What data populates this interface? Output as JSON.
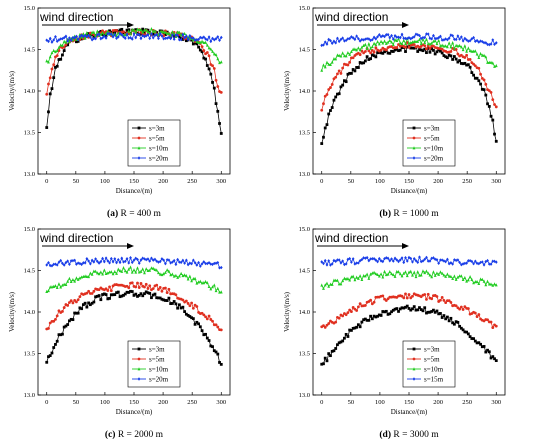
{
  "chart_data": [
    {
      "type": "line",
      "caption_letter": "(a)",
      "caption_text": " R = 400 m",
      "annotation": "wind direction",
      "xlabel": "Distance/(m)",
      "ylabel": "Velocity/(m/s)",
      "xlim": [
        -15,
        315
      ],
      "ylim": [
        13.0,
        15.0
      ],
      "xticks": [
        0,
        50,
        100,
        150,
        200,
        250,
        300
      ],
      "xtick_labels": [
        "0",
        "50",
        "100",
        "150",
        "200",
        "250",
        "300"
      ],
      "yticks": [
        13.0,
        13.5,
        14.0,
        14.5,
        15.0
      ],
      "ytick_labels": [
        "13.0",
        "13.5",
        "14.0",
        "14.5",
        "15.0"
      ],
      "legend_position": "lower-center",
      "series": [
        {
          "name": "s=3m",
          "color": "#000000",
          "marker": "square",
          "x": [
            0,
            5,
            10,
            15,
            20,
            25,
            30,
            40,
            50,
            60,
            75,
            90,
            110,
            130,
            150,
            170,
            190,
            210,
            230,
            250,
            265,
            275,
            282,
            288,
            292,
            296,
            300
          ],
          "y": [
            13.55,
            13.9,
            14.1,
            14.25,
            14.35,
            14.43,
            14.5,
            14.58,
            14.62,
            14.65,
            14.68,
            14.69,
            14.7,
            14.71,
            14.72,
            14.71,
            14.7,
            14.69,
            14.66,
            14.6,
            14.5,
            14.35,
            14.2,
            14.0,
            13.8,
            13.65,
            13.52
          ]
        },
        {
          "name": "s=5m",
          "color": "#e03020",
          "marker": "circle",
          "x": [
            0,
            5,
            10,
            15,
            20,
            25,
            30,
            40,
            50,
            60,
            75,
            90,
            110,
            130,
            150,
            170,
            190,
            210,
            230,
            250,
            265,
            275,
            282,
            288,
            292,
            296,
            300
          ],
          "y": [
            13.95,
            14.15,
            14.3,
            14.4,
            14.47,
            14.52,
            14.56,
            14.62,
            14.64,
            14.66,
            14.68,
            14.69,
            14.7,
            14.7,
            14.71,
            14.71,
            14.7,
            14.69,
            14.67,
            14.62,
            14.55,
            14.45,
            14.35,
            14.25,
            14.12,
            14.02,
            13.95
          ]
        },
        {
          "name": "s=10m",
          "color": "#22cc22",
          "marker": "triangle",
          "x": [
            0,
            10,
            20,
            30,
            40,
            50,
            60,
            75,
            90,
            110,
            130,
            150,
            170,
            190,
            210,
            230,
            250,
            260,
            270,
            280,
            290,
            300
          ],
          "y": [
            14.35,
            14.45,
            14.52,
            14.57,
            14.61,
            14.64,
            14.66,
            14.68,
            14.69,
            14.7,
            14.7,
            14.71,
            14.72,
            14.71,
            14.7,
            14.68,
            14.65,
            14.62,
            14.58,
            14.52,
            14.42,
            14.32
          ]
        },
        {
          "name": "s=20m",
          "color": "#1a3ee8",
          "marker": "diamond",
          "x": [
            0,
            15,
            30,
            50,
            75,
            100,
            125,
            150,
            175,
            200,
            225,
            250,
            275,
            300
          ],
          "y": [
            14.6,
            14.62,
            14.63,
            14.64,
            14.65,
            14.66,
            14.66,
            14.66,
            14.66,
            14.66,
            14.65,
            14.64,
            14.63,
            14.62
          ]
        }
      ]
    },
    {
      "type": "line",
      "caption_letter": "(b)",
      "caption_text": " R = 1000 m",
      "annotation": "wind direction",
      "xlabel": "Distance/(m)",
      "ylabel": "Velocity/(m/s)",
      "xlim": [
        -15,
        315
      ],
      "ylim": [
        13.0,
        15.0
      ],
      "xticks": [
        0,
        50,
        100,
        150,
        200,
        250,
        300
      ],
      "xtick_labels": [
        "0",
        "50",
        "100",
        "150",
        "200",
        "250",
        "300"
      ],
      "yticks": [
        13.0,
        13.5,
        14.0,
        14.5,
        15.0
      ],
      "ytick_labels": [
        "13.0",
        "13.5",
        "14.0",
        "14.5",
        "15.0"
      ],
      "legend_position": "lower-center",
      "series": [
        {
          "name": "s=3m",
          "color": "#000000",
          "marker": "square",
          "x": [
            0,
            10,
            20,
            30,
            40,
            50,
            60,
            75,
            90,
            110,
            130,
            150,
            170,
            190,
            210,
            230,
            250,
            265,
            275,
            285,
            292,
            300
          ],
          "y": [
            13.4,
            13.65,
            13.85,
            14.0,
            14.12,
            14.22,
            14.3,
            14.38,
            14.44,
            14.48,
            14.5,
            14.51,
            14.5,
            14.48,
            14.45,
            14.4,
            14.3,
            14.18,
            14.05,
            13.88,
            13.7,
            13.38
          ]
        },
        {
          "name": "s=5m",
          "color": "#e03020",
          "marker": "circle",
          "x": [
            0,
            10,
            20,
            30,
            40,
            50,
            60,
            75,
            90,
            110,
            130,
            150,
            170,
            190,
            210,
            230,
            250,
            265,
            275,
            285,
            292,
            300
          ],
          "y": [
            13.8,
            13.98,
            14.12,
            14.22,
            14.3,
            14.37,
            14.42,
            14.47,
            14.5,
            14.53,
            14.55,
            14.56,
            14.55,
            14.53,
            14.51,
            14.47,
            14.4,
            14.3,
            14.2,
            14.05,
            13.95,
            13.8
          ]
        },
        {
          "name": "s=10m",
          "color": "#22cc22",
          "marker": "triangle",
          "x": [
            0,
            15,
            30,
            50,
            75,
            100,
            125,
            150,
            175,
            200,
            225,
            250,
            265,
            280,
            290,
            300
          ],
          "y": [
            14.28,
            14.35,
            14.42,
            14.48,
            14.53,
            14.57,
            14.59,
            14.6,
            14.59,
            14.58,
            14.55,
            14.5,
            14.45,
            14.4,
            14.35,
            14.3
          ]
        },
        {
          "name": "s=20m",
          "color": "#1a3ee8",
          "marker": "diamond",
          "x": [
            0,
            25,
            50,
            75,
            100,
            125,
            150,
            175,
            200,
            225,
            250,
            275,
            300
          ],
          "y": [
            14.58,
            14.6,
            14.62,
            14.64,
            14.65,
            14.66,
            14.66,
            14.66,
            14.65,
            14.64,
            14.62,
            14.6,
            14.58
          ]
        }
      ]
    },
    {
      "type": "line",
      "caption_letter": "(c)",
      "caption_text": " R = 2000 m",
      "annotation": "wind direction",
      "xlabel": "Distance/(m)",
      "ylabel": "Velocity/(m/s)",
      "xlim": [
        -15,
        315
      ],
      "ylim": [
        13.0,
        15.0
      ],
      "xticks": [
        0,
        50,
        100,
        150,
        200,
        250,
        300
      ],
      "xtick_labels": [
        "0",
        "50",
        "100",
        "150",
        "200",
        "250",
        "300"
      ],
      "yticks": [
        13.0,
        13.5,
        14.0,
        14.5,
        15.0
      ],
      "ytick_labels": [
        "13.0",
        "13.5",
        "14.0",
        "14.5",
        "15.0"
      ],
      "legend_position": "lower-center",
      "series": [
        {
          "name": "s=3m",
          "color": "#000000",
          "marker": "square",
          "x": [
            0,
            10,
            20,
            30,
            40,
            50,
            60,
            75,
            90,
            110,
            130,
            150,
            170,
            190,
            210,
            230,
            250,
            265,
            280,
            290,
            300
          ],
          "y": [
            13.4,
            13.55,
            13.68,
            13.8,
            13.9,
            13.98,
            14.05,
            14.12,
            14.17,
            14.2,
            14.22,
            14.22,
            14.21,
            14.19,
            14.14,
            14.05,
            13.92,
            13.8,
            13.65,
            13.52,
            13.38
          ]
        },
        {
          "name": "s=5m",
          "color": "#e03020",
          "marker": "circle",
          "x": [
            0,
            10,
            20,
            30,
            40,
            50,
            60,
            75,
            90,
            110,
            130,
            150,
            170,
            190,
            210,
            230,
            250,
            265,
            280,
            290,
            300
          ],
          "y": [
            13.8,
            13.9,
            13.98,
            14.05,
            14.1,
            14.15,
            14.19,
            14.23,
            14.26,
            14.29,
            14.31,
            14.32,
            14.31,
            14.29,
            14.25,
            14.18,
            14.08,
            14.0,
            13.92,
            13.86,
            13.8
          ]
        },
        {
          "name": "s=10m",
          "color": "#22cc22",
          "marker": "triangle",
          "x": [
            0,
            25,
            50,
            75,
            100,
            125,
            150,
            175,
            200,
            225,
            250,
            275,
            300
          ],
          "y": [
            14.25,
            14.33,
            14.4,
            14.45,
            14.48,
            14.5,
            14.51,
            14.5,
            14.48,
            14.45,
            14.4,
            14.33,
            14.26
          ]
        },
        {
          "name": "s=20m",
          "color": "#1a3ee8",
          "marker": "diamond",
          "x": [
            0,
            25,
            50,
            75,
            100,
            125,
            150,
            175,
            200,
            225,
            250,
            275,
            300
          ],
          "y": [
            14.57,
            14.59,
            14.6,
            14.61,
            14.62,
            14.62,
            14.62,
            14.62,
            14.61,
            14.6,
            14.59,
            14.58,
            14.56
          ]
        }
      ]
    },
    {
      "type": "line",
      "caption_letter": "(d)",
      "caption_text": " R = 3000 m",
      "annotation": "wind direction",
      "xlabel": "Distance/(m)",
      "ylabel": "Velocity/(m/s)",
      "xlim": [
        -15,
        315
      ],
      "ylim": [
        13.0,
        15.0
      ],
      "xticks": [
        0,
        50,
        100,
        150,
        200,
        250,
        300
      ],
      "xtick_labels": [
        "0",
        "50",
        "100",
        "150",
        "200",
        "250",
        "300"
      ],
      "yticks": [
        13.0,
        13.5,
        14.0,
        14.5,
        15.0
      ],
      "ytick_labels": [
        "13.0",
        "13.5",
        "14.0",
        "14.5",
        "15.0"
      ],
      "legend_position": "lower-center",
      "series": [
        {
          "name": "s=3m",
          "color": "#000000",
          "marker": "square",
          "x": [
            0,
            10,
            20,
            30,
            40,
            50,
            60,
            75,
            90,
            110,
            130,
            150,
            170,
            190,
            210,
            230,
            250,
            265,
            280,
            290,
            300
          ],
          "y": [
            13.35,
            13.45,
            13.55,
            13.63,
            13.7,
            13.76,
            13.82,
            13.89,
            13.95,
            14.0,
            14.03,
            14.04,
            14.03,
            14.0,
            13.95,
            13.87,
            13.75,
            13.65,
            13.55,
            13.47,
            13.38
          ]
        },
        {
          "name": "s=5m",
          "color": "#e03020",
          "marker": "circle",
          "x": [
            0,
            15,
            30,
            50,
            75,
            100,
            125,
            150,
            175,
            200,
            225,
            250,
            265,
            280,
            290,
            300
          ],
          "y": [
            13.8,
            13.87,
            13.94,
            14.02,
            14.1,
            14.16,
            14.19,
            14.2,
            14.19,
            14.16,
            14.1,
            14.02,
            13.96,
            13.9,
            13.85,
            13.8
          ]
        },
        {
          "name": "s=10m",
          "color": "#22cc22",
          "marker": "triangle",
          "x": [
            0,
            25,
            50,
            75,
            100,
            125,
            150,
            175,
            200,
            225,
            250,
            275,
            300
          ],
          "y": [
            14.3,
            14.36,
            14.4,
            14.43,
            14.45,
            14.46,
            14.46,
            14.46,
            14.45,
            14.43,
            14.4,
            14.36,
            14.3
          ]
        },
        {
          "name": "s=15m",
          "color": "#1a3ee8",
          "marker": "diamond",
          "x": [
            0,
            25,
            50,
            75,
            100,
            125,
            150,
            175,
            200,
            225,
            250,
            275,
            300
          ],
          "y": [
            14.58,
            14.6,
            14.61,
            14.62,
            14.63,
            14.63,
            14.63,
            14.63,
            14.62,
            14.61,
            14.6,
            14.59,
            14.58
          ]
        }
      ]
    }
  ]
}
